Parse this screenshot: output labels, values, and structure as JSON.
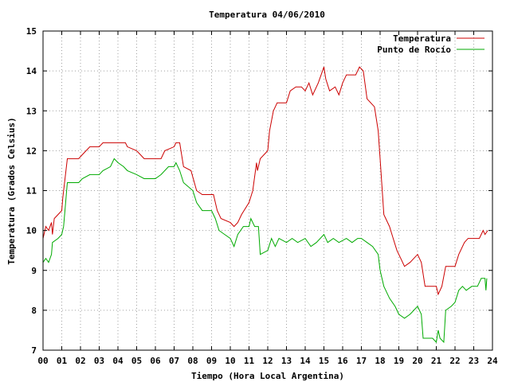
{
  "chart_data": {
    "type": "line",
    "title": "Temperatura 04/06/2010",
    "xlabel": "Tiempo (Hora Local Argentina)",
    "ylabel": "Temperatura (Grados Celsius)",
    "xlim": [
      0,
      24
    ],
    "ylim": [
      7,
      15
    ],
    "x_ticks": [
      "00",
      "01",
      "02",
      "03",
      "04",
      "05",
      "06",
      "07",
      "08",
      "09",
      "10",
      "11",
      "12",
      "13",
      "14",
      "15",
      "16",
      "17",
      "18",
      "19",
      "20",
      "21",
      "22",
      "23",
      "24"
    ],
    "y_ticks": [
      "7",
      "8",
      "9",
      "10",
      "11",
      "12",
      "13",
      "14",
      "15"
    ],
    "grid": true,
    "legend_position": "top-right",
    "series": [
      {
        "name": "Temperatura",
        "color": "#cc0000",
        "points": [
          [
            0,
            9.8
          ],
          [
            0.15,
            10.1
          ],
          [
            0.3,
            10.0
          ],
          [
            0.45,
            10.2
          ],
          [
            0.5,
            9.9
          ],
          [
            0.6,
            10.3
          ],
          [
            1.0,
            10.5
          ],
          [
            1.05,
            10.8
          ],
          [
            1.3,
            11.8
          ],
          [
            1.9,
            11.8
          ],
          [
            2.1,
            11.9
          ],
          [
            2.5,
            12.1
          ],
          [
            3.0,
            12.1
          ],
          [
            3.2,
            12.2
          ],
          [
            4.0,
            12.2
          ],
          [
            4.4,
            12.2
          ],
          [
            4.5,
            12.1
          ],
          [
            5.0,
            12.0
          ],
          [
            5.2,
            11.9
          ],
          [
            5.4,
            11.8
          ],
          [
            6.3,
            11.8
          ],
          [
            6.5,
            12.0
          ],
          [
            7.0,
            12.1
          ],
          [
            7.1,
            12.2
          ],
          [
            7.3,
            12.2
          ],
          [
            7.5,
            11.6
          ],
          [
            7.9,
            11.5
          ],
          [
            8.2,
            11.0
          ],
          [
            8.5,
            10.9
          ],
          [
            9.1,
            10.9
          ],
          [
            9.3,
            10.5
          ],
          [
            9.5,
            10.3
          ],
          [
            10.0,
            10.2
          ],
          [
            10.2,
            10.1
          ],
          [
            10.4,
            10.2
          ],
          [
            10.6,
            10.4
          ],
          [
            11.0,
            10.7
          ],
          [
            11.2,
            11.0
          ],
          [
            11.4,
            11.7
          ],
          [
            11.45,
            11.5
          ],
          [
            11.6,
            11.8
          ],
          [
            12.0,
            12.0
          ],
          [
            12.1,
            12.5
          ],
          [
            12.3,
            13.0
          ],
          [
            12.5,
            13.2
          ],
          [
            13.0,
            13.2
          ],
          [
            13.2,
            13.5
          ],
          [
            13.5,
            13.6
          ],
          [
            13.8,
            13.6
          ],
          [
            14.0,
            13.5
          ],
          [
            14.2,
            13.7
          ],
          [
            14.4,
            13.4
          ],
          [
            14.7,
            13.7
          ],
          [
            15.0,
            14.1
          ],
          [
            15.1,
            13.8
          ],
          [
            15.3,
            13.5
          ],
          [
            15.6,
            13.6
          ],
          [
            15.8,
            13.4
          ],
          [
            16.0,
            13.7
          ],
          [
            16.2,
            13.9
          ],
          [
            16.7,
            13.9
          ],
          [
            16.9,
            14.1
          ],
          [
            17.1,
            14.0
          ],
          [
            17.3,
            13.3
          ],
          [
            17.7,
            13.1
          ],
          [
            17.9,
            12.5
          ],
          [
            18.0,
            11.8
          ],
          [
            18.2,
            10.4
          ],
          [
            18.5,
            10.1
          ],
          [
            18.7,
            9.8
          ],
          [
            18.9,
            9.5
          ],
          [
            19.1,
            9.3
          ],
          [
            19.3,
            9.1
          ],
          [
            19.6,
            9.2
          ],
          [
            20.0,
            9.4
          ],
          [
            20.2,
            9.2
          ],
          [
            20.4,
            8.6
          ],
          [
            21.0,
            8.6
          ],
          [
            21.1,
            8.4
          ],
          [
            21.3,
            8.6
          ],
          [
            21.5,
            9.1
          ],
          [
            22.0,
            9.1
          ],
          [
            22.2,
            9.4
          ],
          [
            22.5,
            9.7
          ],
          [
            22.7,
            9.8
          ],
          [
            23.3,
            9.8
          ],
          [
            23.5,
            10.0
          ],
          [
            23.6,
            9.9
          ],
          [
            23.75,
            10.0
          ]
        ]
      },
      {
        "name": "Punto de Rocío",
        "color": "#00aa00",
        "points": [
          [
            0,
            9.2
          ],
          [
            0.15,
            9.3
          ],
          [
            0.3,
            9.2
          ],
          [
            0.45,
            9.4
          ],
          [
            0.5,
            9.7
          ],
          [
            0.8,
            9.8
          ],
          [
            1.0,
            9.9
          ],
          [
            1.1,
            10.1
          ],
          [
            1.3,
            11.2
          ],
          [
            1.9,
            11.2
          ],
          [
            2.1,
            11.3
          ],
          [
            2.5,
            11.4
          ],
          [
            3.0,
            11.4
          ],
          [
            3.2,
            11.5
          ],
          [
            3.6,
            11.6
          ],
          [
            3.8,
            11.8
          ],
          [
            4.0,
            11.7
          ],
          [
            4.3,
            11.6
          ],
          [
            4.5,
            11.5
          ],
          [
            5.0,
            11.4
          ],
          [
            5.4,
            11.3
          ],
          [
            6.0,
            11.3
          ],
          [
            6.3,
            11.4
          ],
          [
            6.7,
            11.6
          ],
          [
            7.0,
            11.6
          ],
          [
            7.1,
            11.7
          ],
          [
            7.3,
            11.5
          ],
          [
            7.5,
            11.2
          ],
          [
            8.0,
            11.0
          ],
          [
            8.2,
            10.7
          ],
          [
            8.5,
            10.5
          ],
          [
            9.0,
            10.5
          ],
          [
            9.2,
            10.3
          ],
          [
            9.4,
            10.0
          ],
          [
            9.7,
            9.9
          ],
          [
            10.0,
            9.8
          ],
          [
            10.2,
            9.6
          ],
          [
            10.4,
            9.9
          ],
          [
            10.7,
            10.1
          ],
          [
            11.0,
            10.1
          ],
          [
            11.1,
            10.3
          ],
          [
            11.3,
            10.1
          ],
          [
            11.5,
            10.1
          ],
          [
            11.6,
            9.4
          ],
          [
            12.0,
            9.5
          ],
          [
            12.2,
            9.8
          ],
          [
            12.4,
            9.6
          ],
          [
            12.6,
            9.8
          ],
          [
            13.0,
            9.7
          ],
          [
            13.3,
            9.8
          ],
          [
            13.6,
            9.7
          ],
          [
            14.0,
            9.8
          ],
          [
            14.3,
            9.6
          ],
          [
            14.6,
            9.7
          ],
          [
            15.0,
            9.9
          ],
          [
            15.2,
            9.7
          ],
          [
            15.5,
            9.8
          ],
          [
            15.8,
            9.7
          ],
          [
            16.2,
            9.8
          ],
          [
            16.5,
            9.7
          ],
          [
            16.8,
            9.8
          ],
          [
            17.0,
            9.8
          ],
          [
            17.3,
            9.7
          ],
          [
            17.6,
            9.6
          ],
          [
            17.9,
            9.4
          ],
          [
            18.0,
            9.0
          ],
          [
            18.2,
            8.6
          ],
          [
            18.5,
            8.3
          ],
          [
            18.8,
            8.1
          ],
          [
            19.0,
            7.9
          ],
          [
            19.3,
            7.8
          ],
          [
            19.6,
            7.9
          ],
          [
            19.8,
            8.0
          ],
          [
            20.0,
            8.1
          ],
          [
            20.2,
            7.9
          ],
          [
            20.3,
            7.3
          ],
          [
            20.8,
            7.3
          ],
          [
            21.0,
            7.2
          ],
          [
            21.1,
            7.5
          ],
          [
            21.2,
            7.3
          ],
          [
            21.4,
            7.2
          ],
          [
            21.5,
            8.0
          ],
          [
            21.8,
            8.1
          ],
          [
            22.0,
            8.2
          ],
          [
            22.2,
            8.5
          ],
          [
            22.4,
            8.6
          ],
          [
            22.6,
            8.5
          ],
          [
            22.9,
            8.6
          ],
          [
            23.2,
            8.6
          ],
          [
            23.4,
            8.8
          ],
          [
            23.6,
            8.8
          ],
          [
            23.65,
            8.5
          ],
          [
            23.7,
            8.8
          ]
        ]
      }
    ]
  }
}
